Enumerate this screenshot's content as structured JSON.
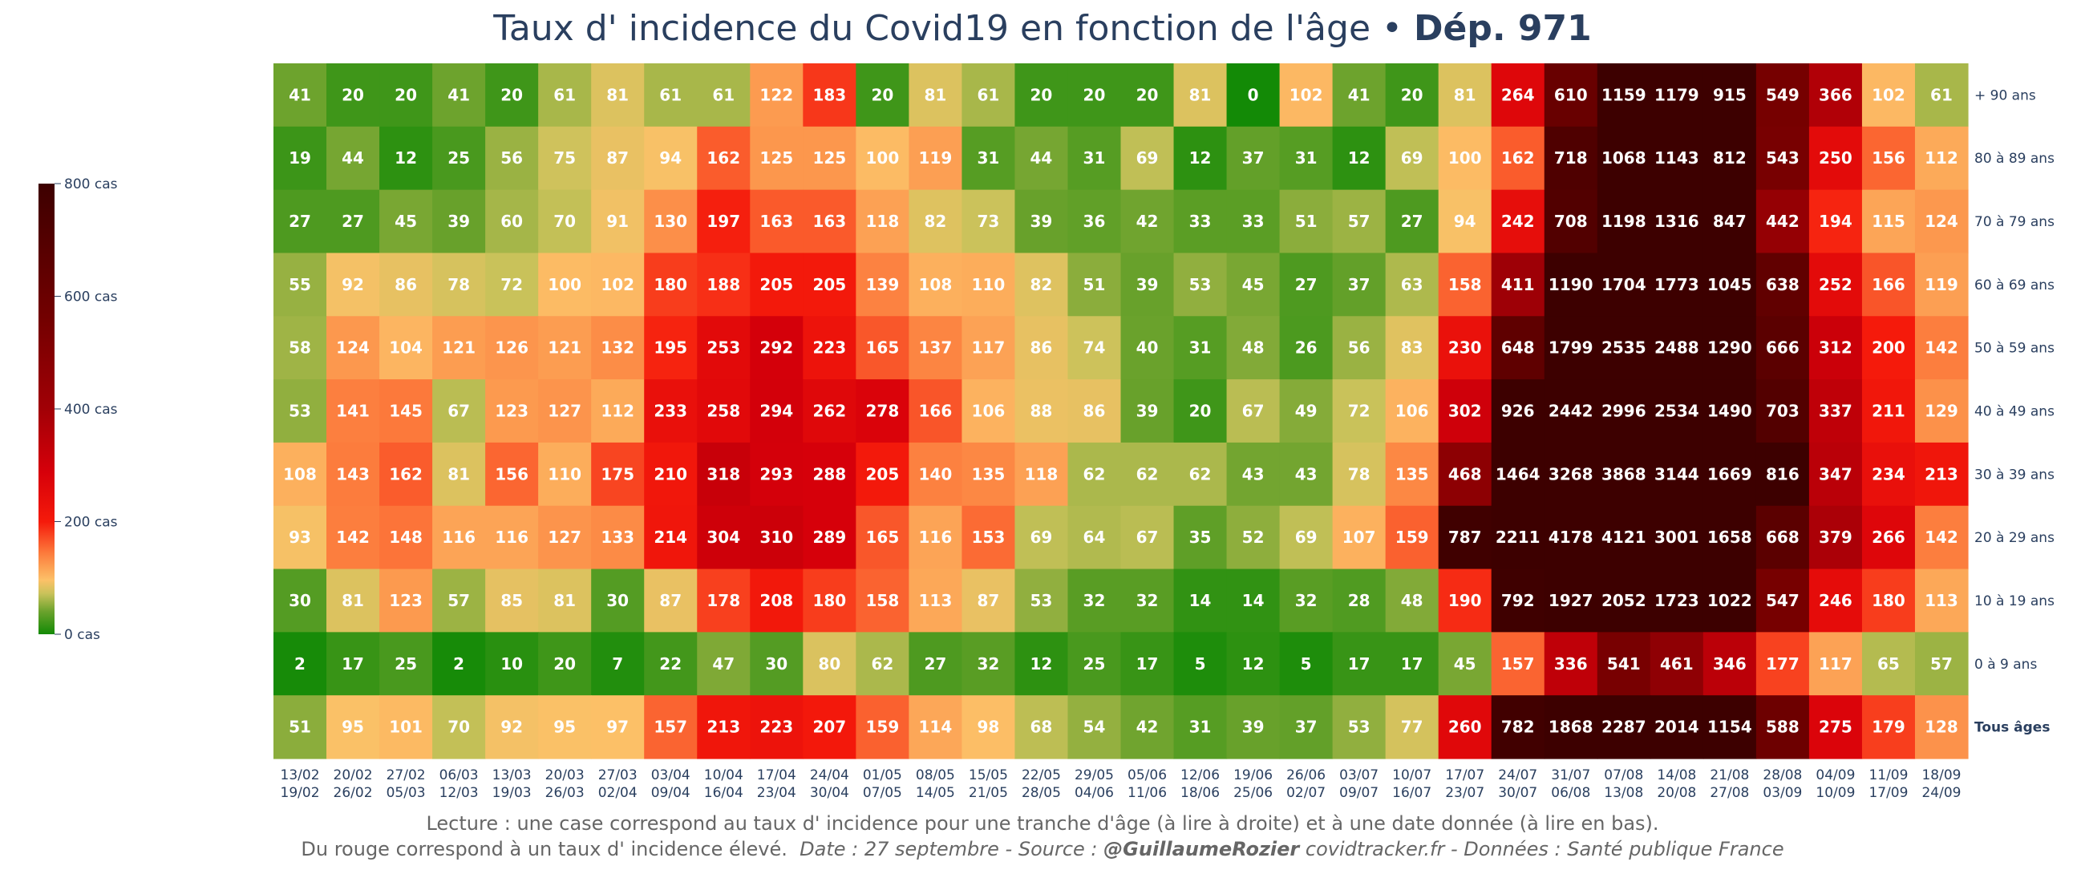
{
  "title": {
    "main": "Taux d' incidence du Covid19 en fonction de l'âge •",
    "dept": "Dép. 971"
  },
  "caption": {
    "line1": "Lecture : une case correspond au taux d' incidence pour une tranche d'âge (à lire à droite) et à une date donnée (à lire en bas).",
    "line2_plain": "Du rouge correspond à un taux d' incidence élevé.",
    "line2_date": "Date : 27 septembre - Source :",
    "line2_author": "@GuillaumeRozier",
    "line2_rest": "covidtracker.fr - Données : Santé publique France"
  },
  "colorbar": {
    "ticks": [
      {
        "value": 0,
        "label": "0 cas"
      },
      {
        "value": 200,
        "label": "200 cas"
      },
      {
        "value": 400,
        "label": "400 cas"
      },
      {
        "value": 600,
        "label": "600 cas"
      },
      {
        "value": 800,
        "label": "800 cas"
      }
    ],
    "range": [
      0,
      800
    ]
  },
  "colors": {
    "scale": [
      [
        0,
        "#138a06"
      ],
      [
        0.05,
        "#6aa22c"
      ],
      [
        0.09,
        "#c9c25a"
      ],
      [
        0.12,
        "#fcc168"
      ],
      [
        0.18,
        "#fc7b3c"
      ],
      [
        0.25,
        "#f51a0b"
      ],
      [
        0.36,
        "#d6000a"
      ],
      [
        0.5,
        "#a10006"
      ],
      [
        0.7,
        "#730000"
      ],
      [
        1.0,
        "#3d0000"
      ]
    ],
    "text": "#2a3f5f"
  },
  "chart_data": {
    "type": "heatmap",
    "title": "Taux d' incidence du Covid19 en fonction de l'âge • Dép. 971",
    "x": [
      [
        "13/02",
        "19/02"
      ],
      [
        "20/02",
        "26/02"
      ],
      [
        "27/02",
        "05/03"
      ],
      [
        "06/03",
        "12/03"
      ],
      [
        "13/03",
        "19/03"
      ],
      [
        "20/03",
        "26/03"
      ],
      [
        "27/03",
        "02/04"
      ],
      [
        "03/04",
        "09/04"
      ],
      [
        "10/04",
        "16/04"
      ],
      [
        "17/04",
        "23/04"
      ],
      [
        "24/04",
        "30/04"
      ],
      [
        "01/05",
        "07/05"
      ],
      [
        "08/05",
        "14/05"
      ],
      [
        "15/05",
        "21/05"
      ],
      [
        "22/05",
        "28/05"
      ],
      [
        "29/05",
        "04/06"
      ],
      [
        "05/06",
        "11/06"
      ],
      [
        "12/06",
        "18/06"
      ],
      [
        "19/06",
        "25/06"
      ],
      [
        "26/06",
        "02/07"
      ],
      [
        "03/07",
        "09/07"
      ],
      [
        "10/07",
        "16/07"
      ],
      [
        "17/07",
        "23/07"
      ],
      [
        "24/07",
        "30/07"
      ],
      [
        "31/07",
        "06/08"
      ],
      [
        "07/08",
        "13/08"
      ],
      [
        "14/08",
        "20/08"
      ],
      [
        "21/08",
        "27/08"
      ],
      [
        "28/08",
        "03/09"
      ],
      [
        "04/09",
        "10/09"
      ],
      [
        "11/09",
        "17/09"
      ],
      [
        "18/09",
        "24/09"
      ]
    ],
    "y": [
      "+ 90 ans",
      "80 à 89 ans",
      "70 à 79 ans",
      "60 à 69 ans",
      "50 à 59 ans",
      "40 à 49 ans",
      "30 à 39 ans",
      "20 à 29 ans",
      "10 à 19 ans",
      "0 à 9 ans",
      "Tous âges"
    ],
    "z": [
      [
        41,
        20,
        20,
        41,
        20,
        61,
        81,
        61,
        61,
        122,
        183,
        20,
        81,
        61,
        20,
        20,
        20,
        81,
        0,
        102,
        41,
        20,
        81,
        264,
        610,
        1159,
        1179,
        915,
        549,
        366,
        102,
        61
      ],
      [
        19,
        44,
        12,
        25,
        56,
        75,
        87,
        94,
        162,
        125,
        125,
        100,
        119,
        31,
        44,
        31,
        69,
        12,
        37,
        31,
        12,
        69,
        100,
        162,
        718,
        1068,
        1143,
        812,
        543,
        250,
        156,
        112
      ],
      [
        27,
        27,
        45,
        39,
        60,
        70,
        91,
        130,
        197,
        163,
        163,
        118,
        82,
        73,
        39,
        36,
        42,
        33,
        33,
        51,
        57,
        27,
        94,
        242,
        708,
        1198,
        1316,
        847,
        442,
        194,
        115,
        124
      ],
      [
        55,
        92,
        86,
        78,
        72,
        100,
        102,
        180,
        188,
        205,
        205,
        139,
        108,
        110,
        82,
        51,
        39,
        53,
        45,
        27,
        37,
        63,
        158,
        411,
        1190,
        1704,
        1773,
        1045,
        638,
        252,
        166,
        119
      ],
      [
        58,
        124,
        104,
        121,
        126,
        121,
        132,
        195,
        253,
        292,
        223,
        165,
        137,
        117,
        86,
        74,
        40,
        31,
        48,
        26,
        56,
        83,
        230,
        648,
        1799,
        2535,
        2488,
        1290,
        666,
        312,
        200,
        142
      ],
      [
        53,
        141,
        145,
        67,
        123,
        127,
        112,
        233,
        258,
        294,
        262,
        278,
        166,
        106,
        88,
        86,
        39,
        20,
        67,
        49,
        72,
        106,
        302,
        926,
        2442,
        2996,
        2534,
        1490,
        703,
        337,
        211,
        129
      ],
      [
        108,
        143,
        162,
        81,
        156,
        110,
        175,
        210,
        318,
        293,
        288,
        205,
        140,
        135,
        118,
        62,
        62,
        62,
        43,
        43,
        78,
        135,
        468,
        1464,
        3268,
        3868,
        3144,
        1669,
        816,
        347,
        234,
        213
      ],
      [
        93,
        142,
        148,
        116,
        116,
        127,
        133,
        214,
        304,
        310,
        289,
        165,
        116,
        153,
        69,
        64,
        67,
        35,
        52,
        69,
        107,
        159,
        787,
        2211,
        4178,
        4121,
        3001,
        1658,
        668,
        379,
        266,
        142
      ],
      [
        30,
        81,
        123,
        57,
        85,
        81,
        30,
        87,
        178,
        208,
        180,
        158,
        113,
        87,
        53,
        32,
        32,
        14,
        14,
        32,
        28,
        48,
        190,
        792,
        1927,
        2052,
        1723,
        1022,
        547,
        246,
        180,
        113
      ],
      [
        2,
        17,
        25,
        2,
        10,
        20,
        7,
        22,
        47,
        30,
        80,
        62,
        27,
        32,
        12,
        25,
        17,
        5,
        12,
        5,
        17,
        17,
        45,
        157,
        336,
        541,
        461,
        346,
        177,
        117,
        65,
        57
      ],
      [
        51,
        95,
        101,
        70,
        92,
        95,
        97,
        157,
        213,
        223,
        207,
        159,
        114,
        98,
        68,
        54,
        42,
        31,
        39,
        37,
        53,
        77,
        260,
        782,
        1868,
        2287,
        2014,
        1154,
        588,
        275,
        179,
        128
      ]
    ],
    "zmin": 0,
    "zmax": 800,
    "colorbar_title": "",
    "bold_y_label": "Tous âges"
  }
}
